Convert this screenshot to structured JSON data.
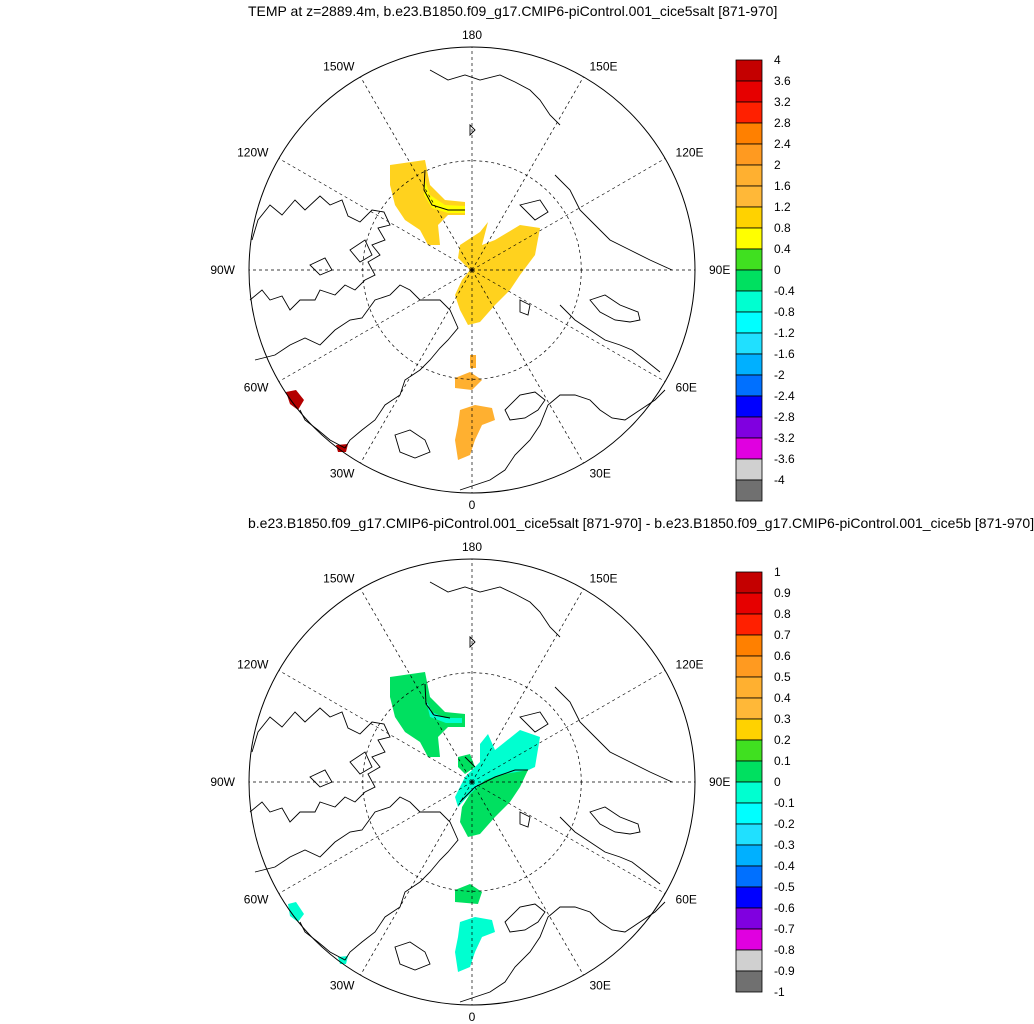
{
  "panels": [
    {
      "title": "TEMP at z=2889.4m, b.e23.B1850.f09_g17.CMIP6-piControl.001_cice5salt [871-970]",
      "lon_labels": [
        "180",
        "150E",
        "120E",
        "90E",
        "60E",
        "30E",
        "0",
        "30W",
        "60W",
        "90W",
        "120W",
        "150W"
      ],
      "colorbar": {
        "labels": [
          "4",
          "3.6",
          "3.2",
          "2.8",
          "2.4",
          "2",
          "1.6",
          "1.2",
          "0.8",
          "0.4",
          "0",
          "-0.4",
          "-0.8",
          "-1.2",
          "-1.6",
          "-2",
          "-2.4",
          "-2.8",
          "-3.2",
          "-3.6",
          "-4"
        ],
        "colors": [
          "#c40000",
          "#e60000",
          "#ff2000",
          "#ff8000",
          "#ff9a20",
          "#ffb030",
          "#ffb838",
          "#ffd200",
          "#ffff00",
          "#40e020",
          "#00e060",
          "#00ffd0",
          "#00ffff",
          "#20e0ff",
          "#00b0ff",
          "#0070ff",
          "#0000ff",
          "#8000e0",
          "#e000e0",
          "#d0d0d0",
          "#707070"
        ]
      }
    },
    {
      "title": "b.e23.B1850.f09_g17.CMIP6-piControl.001_cice5salt [871-970] - b.e23.B1850.f09_g17.CMIP6-piControl.001_cice5b [871-970]",
      "lon_labels": [
        "180",
        "150E",
        "120E",
        "90E",
        "60E",
        "30E",
        "0",
        "30W",
        "60W",
        "90W",
        "120W",
        "150W"
      ],
      "colorbar": {
        "labels": [
          "1",
          "0.9",
          "0.8",
          "0.7",
          "0.6",
          "0.5",
          "0.4",
          "0.3",
          "0.2",
          "0.1",
          "0",
          "-0.1",
          "-0.2",
          "-0.3",
          "-0.4",
          "-0.5",
          "-0.6",
          "-0.7",
          "-0.8",
          "-0.9",
          "-1"
        ],
        "colors": [
          "#c40000",
          "#e60000",
          "#ff2000",
          "#ff8000",
          "#ff9a20",
          "#ffb030",
          "#ffb838",
          "#ffd200",
          "#40e020",
          "#00e060",
          "#00ffd0",
          "#00ffff",
          "#20e0ff",
          "#00b0ff",
          "#0070ff",
          "#0000ff",
          "#8000e0",
          "#e000e0",
          "#d0d0d0",
          "#707070"
        ]
      }
    }
  ]
}
